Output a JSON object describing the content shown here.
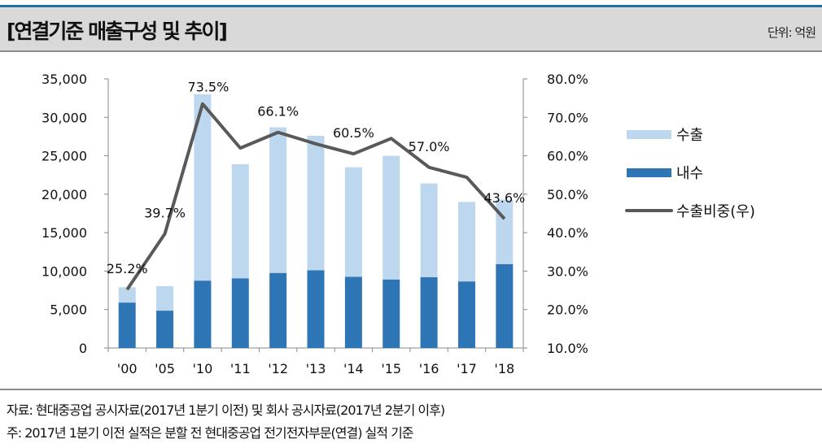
{
  "header": {
    "title": "[연결기준 매출구성 및 추이]",
    "unit": "단위: 억원"
  },
  "footer": {
    "source": "자료: 현대중공업 공시자료(2017년 1분기 이전) 및 회사 공시자료(2017년 2분기 이후)",
    "note": "주: 2017년 1분기 이전 실적은 분할 전 현대중공업 전기전자부문(연결) 실적 기준"
  },
  "chart_data": {
    "type": "bar",
    "stacked": true,
    "categories": [
      "'00",
      "'05",
      "'10",
      "'11",
      "'12",
      "'13",
      "'14",
      "'15",
      "'16",
      "'17",
      "'18"
    ],
    "series": [
      {
        "name": "내수",
        "type": "bar",
        "axis": "left",
        "color": "#2e75b6",
        "values": [
          5900,
          4850,
          8750,
          9050,
          9750,
          10100,
          9250,
          8900,
          9200,
          8650,
          10900
        ]
      },
      {
        "name": "수출",
        "type": "bar",
        "axis": "left",
        "color": "#bdd7ee",
        "values": [
          2000,
          3200,
          24250,
          14850,
          18950,
          17500,
          14250,
          16100,
          12200,
          10350,
          8400
        ]
      },
      {
        "name": "수출비중(우)",
        "type": "line",
        "axis": "right",
        "color": "#595959",
        "values": [
          25.2,
          39.7,
          73.5,
          62.0,
          66.1,
          63.1,
          60.5,
          64.5,
          57.0,
          54.4,
          43.6
        ]
      }
    ],
    "data_labels": [
      {
        "index": 0,
        "text": "25.2%"
      },
      {
        "index": 1,
        "text": "39.7%"
      },
      {
        "index": 2,
        "text": "73.5%"
      },
      {
        "index": 4,
        "text": "66.1%"
      },
      {
        "index": 6,
        "text": "60.5%"
      },
      {
        "index": 8,
        "text": "57.0%"
      },
      {
        "index": 10,
        "text": "43.6%"
      }
    ],
    "left_axis": {
      "ylim": [
        0,
        35000
      ],
      "ticks": [
        "0",
        "5,000",
        "10,000",
        "15,000",
        "20,000",
        "25,000",
        "30,000",
        "35,000"
      ]
    },
    "right_axis": {
      "ylim": [
        10,
        80
      ],
      "ticks": [
        "10.0%",
        "20.0%",
        "30.0%",
        "40.0%",
        "50.0%",
        "60.0%",
        "70.0%",
        "80.0%"
      ]
    },
    "legend": {
      "position": "right",
      "items": [
        "수출",
        "내수",
        "수출비중(우)"
      ]
    },
    "grid": false
  }
}
